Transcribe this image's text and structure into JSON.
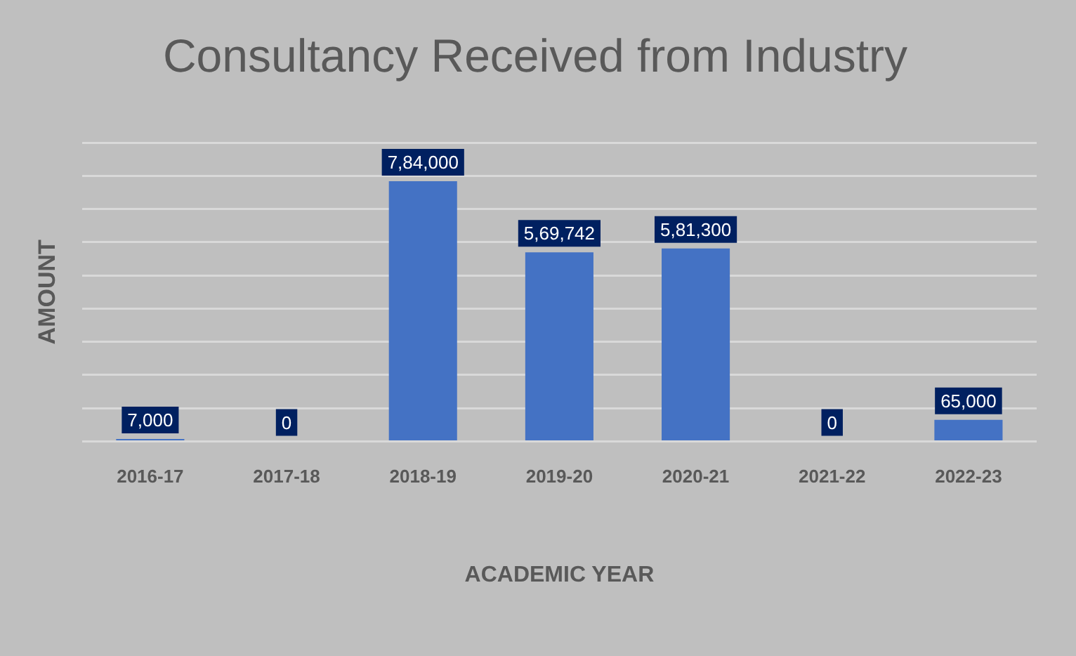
{
  "chart_data": {
    "type": "bar",
    "title": "Consultancy Received from Industry",
    "xlabel": "ACADEMIC YEAR",
    "ylabel": "AMOUNT",
    "categories": [
      "2016-17",
      "2017-18",
      "2018-19",
      "2019-20",
      "2020-21",
      "2021-22",
      "2022-23"
    ],
    "values": [
      7000,
      0,
      784000,
      569742,
      581300,
      0,
      65000
    ],
    "value_labels": [
      "7,000",
      "0",
      "7,84,000",
      "5,69,742",
      "5,81,300",
      "0",
      "65,000"
    ],
    "color": "#4472c4",
    "ylim": [
      0,
      900000
    ],
    "yticks": [
      {
        "value": 0,
        "label": null
      },
      {
        "value": 100000,
        "label": null
      },
      {
        "value": 200000,
        "label": null
      },
      {
        "value": 300000,
        "label": null
      },
      {
        "value": 400000,
        "label": null
      },
      {
        "value": 500000,
        "label": null
      },
      {
        "value": 600000,
        "label": null
      },
      {
        "value": 700000,
        "label": null
      },
      {
        "value": 800000,
        "label": null
      },
      {
        "value": 900000,
        "label": null
      }
    ],
    "grid": "y",
    "tick_labels": "x"
  }
}
